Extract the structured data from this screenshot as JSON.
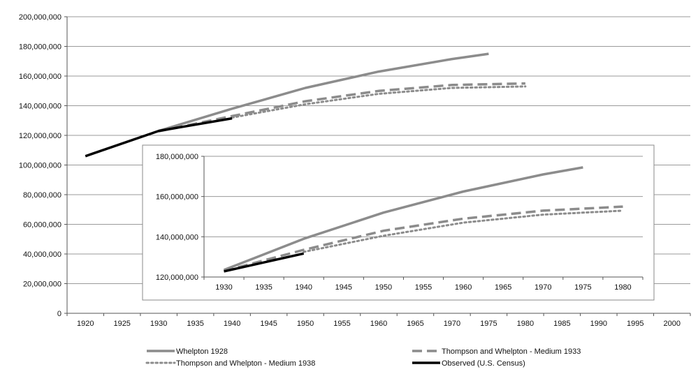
{
  "chart_data": [
    {
      "id": "main",
      "type": "line",
      "title": "",
      "xlabel": "",
      "ylabel": "",
      "xlim": [
        1920,
        2000
      ],
      "ylim": [
        0,
        200000000
      ],
      "x_ticks": [
        1920,
        1925,
        1930,
        1935,
        1940,
        1945,
        1950,
        1955,
        1960,
        1965,
        1970,
        1975,
        1980,
        1985,
        1990,
        1995,
        2000
      ],
      "y_ticks": [
        0,
        20000000,
        40000000,
        60000000,
        80000000,
        100000000,
        120000000,
        140000000,
        160000000,
        180000000,
        200000000
      ],
      "y_tick_labels": [
        "0",
        "20,000,000",
        "40,000,000",
        "60,000,000",
        "80,000,000",
        "100,000,000",
        "120,000,000",
        "140,000,000",
        "160,000,000",
        "180,000,000",
        "200,000,000"
      ],
      "grid": "horizontal",
      "legend_position": "bottom",
      "series": [
        {
          "name": "Whelpton 1928",
          "color": "#8c8c8c",
          "style": "solid",
          "x": [
            1930,
            1940,
            1950,
            1960,
            1970,
            1975
          ],
          "y": [
            123000000,
            138000000,
            152000000,
            163000000,
            171500000,
            175000000
          ]
        },
        {
          "name": "Thompson and Whelpton - Medium 1933",
          "color": "#8c8c8c",
          "style": "dashed",
          "x": [
            1930,
            1940,
            1950,
            1960,
            1970,
            1980
          ],
          "y": [
            122800000,
            133000000,
            143000000,
            150000000,
            154000000,
            155000000
          ]
        },
        {
          "name": "Thompson and Whelpton - Medium 1938",
          "color": "#8c8c8c",
          "style": "dotted",
          "x": [
            1940,
            1950,
            1960,
            1970,
            1980
          ],
          "y": [
            132000000,
            141000000,
            148000000,
            152000000,
            153000000
          ]
        },
        {
          "name": "Observed (U.S. Census)",
          "color": "#000000",
          "style": "solid",
          "x": [
            1920,
            1930,
            1940
          ],
          "y": [
            106000000,
            123000000,
            131500000
          ]
        }
      ]
    },
    {
      "id": "inset",
      "type": "line",
      "title": "",
      "xlabel": "",
      "ylabel": "",
      "xlim": [
        1930,
        1980
      ],
      "ylim": [
        120000000,
        180000000
      ],
      "x_ticks": [
        1930,
        1935,
        1940,
        1945,
        1950,
        1955,
        1960,
        1965,
        1970,
        1975,
        1980
      ],
      "y_ticks": [
        120000000,
        140000000,
        160000000,
        180000000
      ],
      "y_tick_labels": [
        "120,000,000",
        "140,000,000",
        "160,000,000",
        "180,000,000"
      ],
      "grid": "horizontal",
      "series": [
        {
          "name": "Whelpton 1928",
          "color": "#8c8c8c",
          "style": "solid",
          "x": [
            1930,
            1940,
            1950,
            1960,
            1970,
            1975
          ],
          "y": [
            123500000,
            139000000,
            152000000,
            162500000,
            171000000,
            174500000
          ]
        },
        {
          "name": "Thompson and Whelpton - Medium 1933",
          "color": "#8c8c8c",
          "style": "dashed",
          "x": [
            1930,
            1940,
            1950,
            1960,
            1970,
            1980
          ],
          "y": [
            123000000,
            133500000,
            143000000,
            149000000,
            153000000,
            155000000
          ]
        },
        {
          "name": "Thompson and Whelpton - Medium 1938",
          "color": "#8c8c8c",
          "style": "dotted",
          "x": [
            1940,
            1950,
            1960,
            1970,
            1980
          ],
          "y": [
            132500000,
            140500000,
            147000000,
            151000000,
            153000000
          ]
        },
        {
          "name": "Observed (U.S. Census)",
          "color": "#000000",
          "style": "solid",
          "x": [
            1930,
            1940
          ],
          "y": [
            122800000,
            131700000
          ]
        }
      ]
    }
  ]
}
